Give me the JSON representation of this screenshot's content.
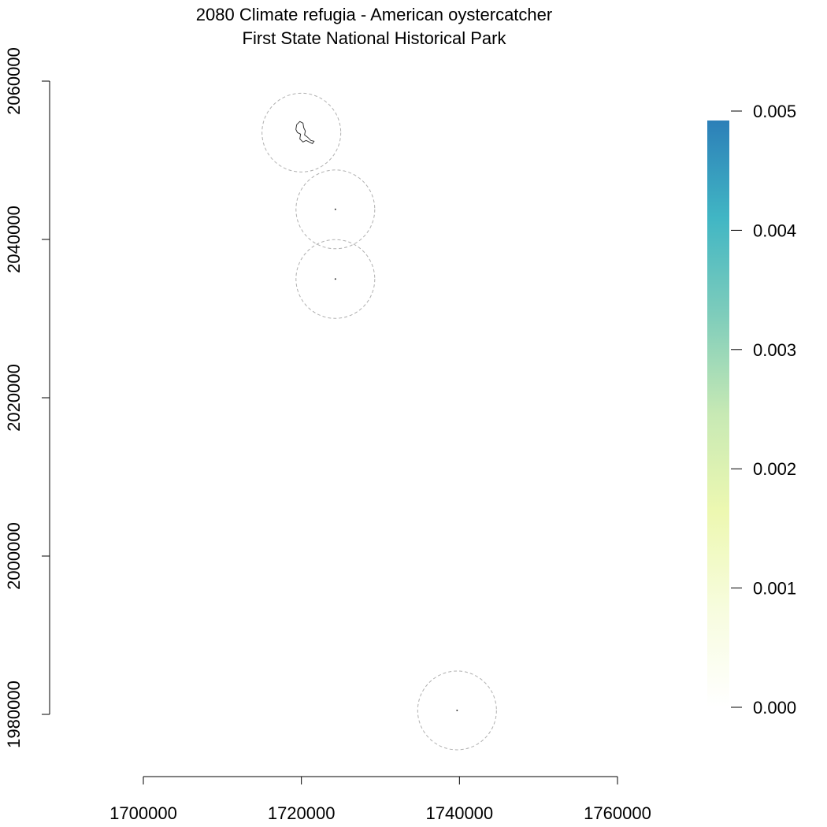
{
  "title": [
    "2080 Climate refugia - American oystercatcher",
    "First State National Historical Park"
  ],
  "x_axis": {
    "range": [
      1700000,
      1760000
    ],
    "ticks": [
      1700000,
      1720000,
      1740000,
      1760000
    ],
    "tick_labels": [
      "1700000",
      "1720000",
      "1740000",
      "1760000"
    ]
  },
  "y_axis": {
    "range": [
      1980000,
      2060000
    ],
    "ticks": [
      1980000,
      2000000,
      2020000,
      2040000,
      2060000
    ],
    "tick_labels": [
      "1980000",
      "2000000",
      "2020000",
      "2040000",
      "2060000"
    ]
  },
  "legend": {
    "type": "colorbar",
    "range": [
      0.0,
      0.005
    ],
    "ticks": [
      0.0,
      0.001,
      0.002,
      0.003,
      0.004,
      0.005
    ],
    "tick_labels": [
      "0.000",
      "0.001",
      "0.002",
      "0.003",
      "0.004",
      "0.005"
    ],
    "colors": [
      "#ffffff",
      "#f7fcde",
      "#edf8b1",
      "#c7e9b4",
      "#7fcdbb",
      "#41b6c4",
      "#2c7fb8"
    ]
  },
  "buffers": [
    {
      "name": "north-park-buffer",
      "center": [
        1720000,
        2053500
      ]
    },
    {
      "name": "middle-upper-buffer",
      "center": [
        1724300,
        2043800
      ]
    },
    {
      "name": "middle-lower-buffer",
      "center": [
        1724300,
        2035000
      ]
    },
    {
      "name": "south-buffer",
      "center": [
        1739700,
        1980500
      ]
    }
  ],
  "park_units": [
    {
      "name": "north-park-unit",
      "location": [
        1720000,
        2053500
      ]
    },
    {
      "name": "upper-middle-park-unit",
      "location": [
        1724300,
        2043800
      ]
    },
    {
      "name": "lower-middle-park-unit",
      "location": [
        1724300,
        2035000
      ]
    },
    {
      "name": "south-park-unit",
      "location": [
        1739700,
        1980500
      ]
    }
  ],
  "buffer_style": {
    "stroke": "#b0b0b0",
    "dash": "dashed"
  },
  "park_outline_color": "#333333"
}
